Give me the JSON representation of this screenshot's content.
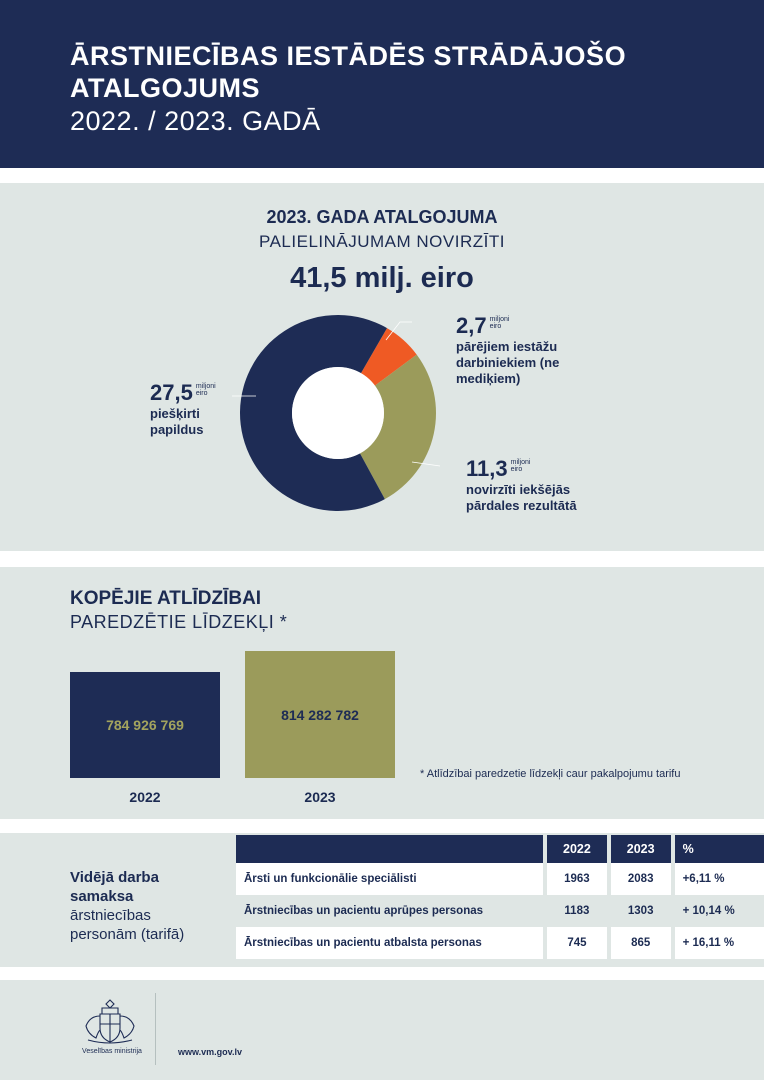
{
  "header": {
    "title": "ĀRSTNIECĪBAS IESTĀDĒS STRĀDĀJOŠO ATALGOJUMS",
    "subtitle": "2022. / 2023. GADĀ"
  },
  "chart_data": [
    {
      "type": "pie",
      "title": "2023. GADA ATALGOJUMA",
      "subtitle": "PALIELINĀJUMAM NOVIRZĪTI",
      "total": "41,5 milj. eiro",
      "unit": "miljoni eiro",
      "slices": [
        {
          "value": 2.7,
          "display": "2,7",
          "label": "pārējiem iestāžu darbiniekiem (ne mediķiem)",
          "color": "#ef5a24"
        },
        {
          "value": 11.3,
          "display": "11,3",
          "label": "novirzīti iekšējās pārdales rezultātā",
          "color": "#9b9b5b"
        },
        {
          "value": 27.5,
          "display": "27,5",
          "label": "piešķirti papildus",
          "color": "#1e2c55"
        }
      ]
    },
    {
      "type": "bar",
      "title": "KOPĒJIE ATLĪDZĪBAI",
      "subtitle": "PAREDZĒTIE LĪDZEKĻI *",
      "categories": [
        "2022",
        "2023"
      ],
      "values": [
        784926769,
        814282782
      ],
      "value_labels": [
        "784 926 769",
        "814 282 782"
      ],
      "colors": [
        "#1e2c55",
        "#9b9b5b"
      ],
      "footnote": "* Atlīdzībai paredzetie līdzekļi caur pakalpojumu tarifu"
    },
    {
      "type": "table",
      "title": "Vidējā darba samaksa",
      "subtitle": "ārstniecības personām (tarifā)",
      "columns": [
        "",
        "2022",
        "2023",
        "%"
      ],
      "rows": [
        [
          "Ārsti un funkcionālie speciālisti",
          "1963",
          "2083",
          "+6,11 %"
        ],
        [
          "Ārstniecības un pacientu aprūpes personas",
          "1183",
          "1303",
          "+ 10,14 %"
        ],
        [
          "Ārstniecības un pacientu atbalsta personas",
          "745",
          "865",
          "+ 16,11 %"
        ]
      ]
    }
  ],
  "footer": {
    "ministry": "Veselības ministrija",
    "website": "www.vm.gov.lv"
  }
}
